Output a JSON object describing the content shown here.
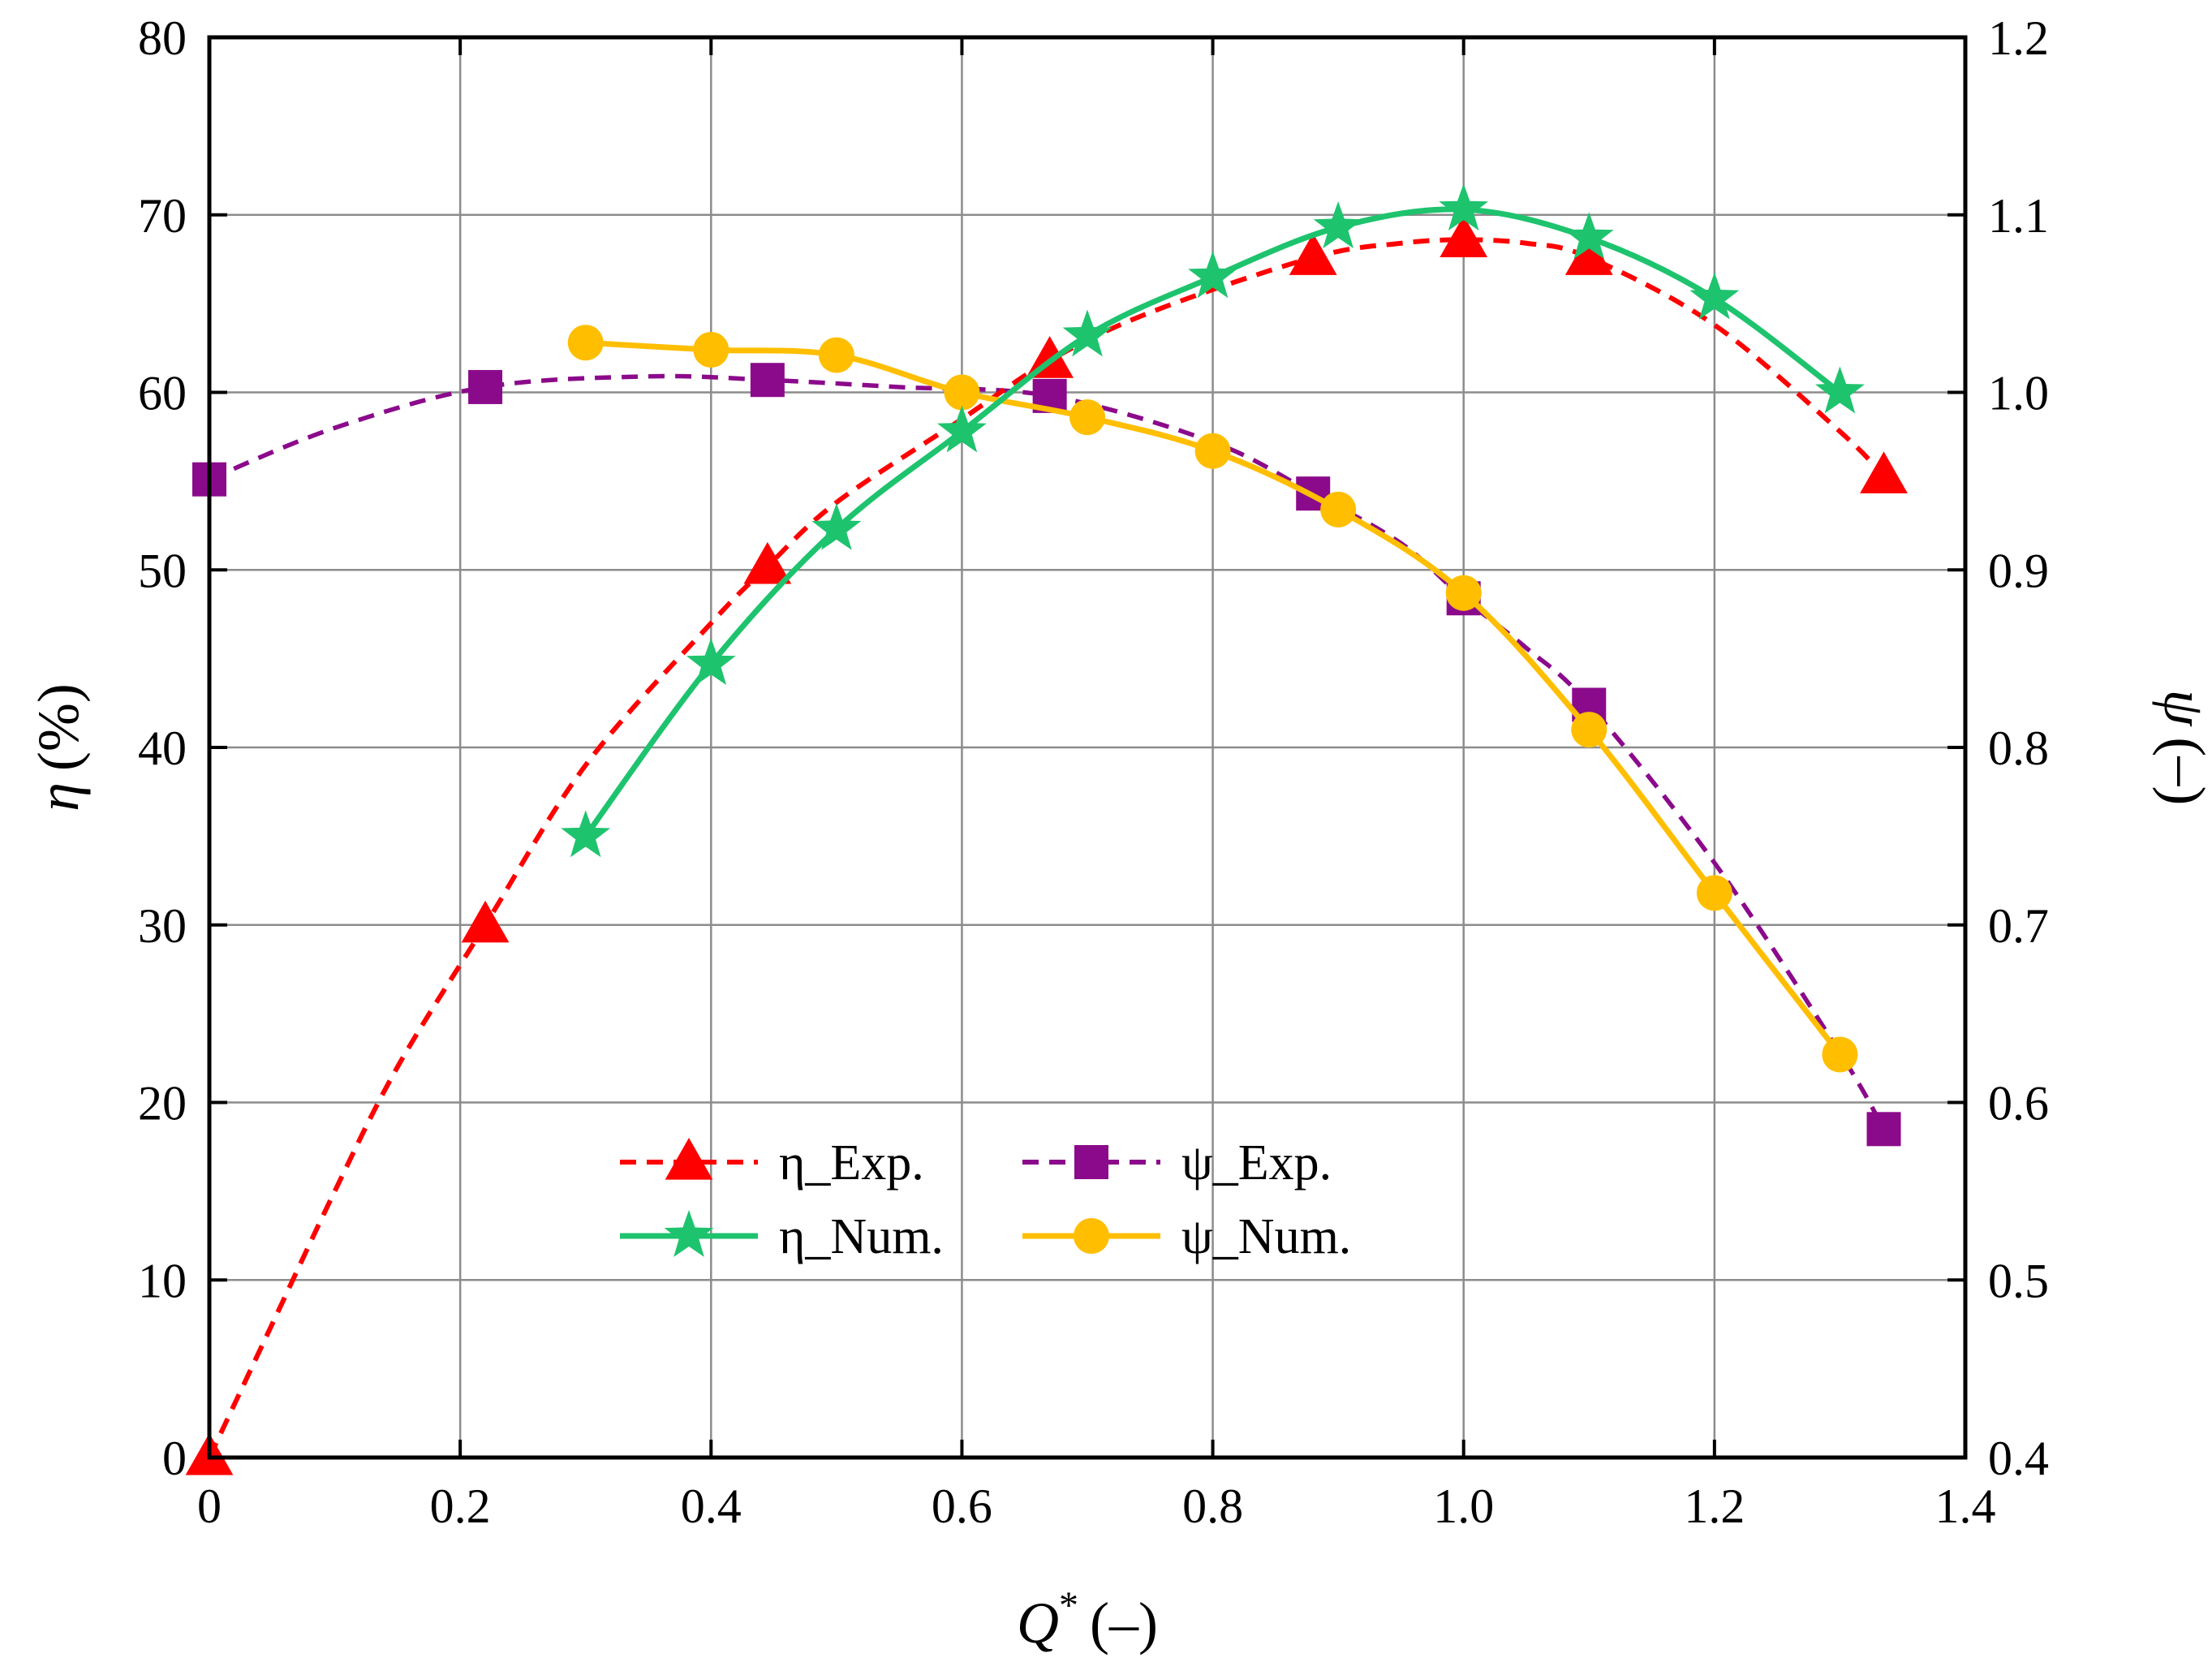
{
  "chart_data": {
    "type": "line",
    "x_axis": {
      "label_symbol": "Q",
      "label_superscript": "*",
      "label_unit": "(–)",
      "range": [
        0,
        1.4
      ],
      "ticks": [
        "0",
        "0.2",
        "0.4",
        "0.6",
        "0.8",
        "1.0",
        "1.2",
        "1.4"
      ],
      "tick_values": [
        0,
        0.2,
        0.4,
        0.6,
        0.8,
        1.0,
        1.2,
        1.4
      ]
    },
    "y_left": {
      "label_symbol": "η",
      "label_unit": "(%)",
      "range": [
        0,
        80
      ],
      "ticks": [
        "0",
        "10",
        "20",
        "30",
        "40",
        "50",
        "60",
        "70",
        "80"
      ],
      "tick_values": [
        0,
        10,
        20,
        30,
        40,
        50,
        60,
        70,
        80
      ]
    },
    "y_right": {
      "label_symbol": "ψ",
      "label_unit": "(–)",
      "range": [
        0.4,
        1.2
      ],
      "ticks": [
        "0.4",
        "0.5",
        "0.6",
        "0.7",
        "0.8",
        "0.9",
        "1.0",
        "1.1",
        "1.2"
      ],
      "tick_values": [
        0.4,
        0.5,
        0.6,
        0.7,
        0.8,
        0.9,
        1.0,
        1.1,
        1.2
      ]
    },
    "grid": true,
    "legend_position": "lower-center",
    "series": [
      {
        "name": "η_Exp.",
        "axis": "left",
        "color": "#ff0000",
        "marker": "triangle",
        "line": "dashed",
        "x": [
          0,
          0.22,
          0.445,
          0.67,
          0.88,
          1.0,
          1.1,
          1.335
        ],
        "y": [
          0,
          30,
          50.2,
          61.8,
          67.6,
          68.6,
          67.6,
          55.3
        ],
        "curve_x": [
          0,
          0.05,
          0.1,
          0.15,
          0.22,
          0.3,
          0.4,
          0.445,
          0.5,
          0.6,
          0.67,
          0.75,
          0.88,
          0.95,
          1.0,
          1.05,
          1.1,
          1.2,
          1.3,
          1.335
        ],
        "curve_y": [
          0,
          7.5,
          15,
          22,
          30,
          39,
          47,
          50.2,
          53.8,
          58.5,
          61.8,
          64.5,
          67.6,
          68.4,
          68.6,
          68.4,
          67.6,
          63.8,
          57.8,
          55.3
        ]
      },
      {
        "name": "η_Num.",
        "axis": "left",
        "color": "#1ec36e",
        "marker": "star",
        "line": "solid",
        "x": [
          0.3,
          0.4,
          0.5,
          0.6,
          0.7,
          0.8,
          0.9,
          1.0,
          1.1,
          1.2,
          1.3
        ],
        "y": [
          35,
          44.7,
          52.3,
          57.8,
          63.2,
          66.5,
          69.3,
          70.3,
          68.7,
          65.3,
          60
        ]
      },
      {
        "name": "ψ_Exp.",
        "axis": "right",
        "color": "#8b0a8b",
        "marker": "square",
        "line": "dashed",
        "x": [
          0,
          0.22,
          0.445,
          0.67,
          0.88,
          1.0,
          1.1,
          1.335
        ],
        "y": [
          0.951,
          1.003,
          1.007,
          0.998,
          0.943,
          0.884,
          0.824,
          0.585
        ],
        "curve_x": [
          0,
          0.1,
          0.22,
          0.35,
          0.445,
          0.55,
          0.67,
          0.8,
          0.88,
          0.95,
          1.0,
          1.05,
          1.1,
          1.2,
          1.3,
          1.335
        ],
        "curve_y": [
          0.951,
          0.98,
          1.003,
          1.009,
          1.007,
          1.003,
          0.998,
          0.972,
          0.943,
          0.915,
          0.884,
          0.856,
          0.824,
          0.735,
          0.628,
          0.585
        ]
      },
      {
        "name": "ψ_Num.",
        "axis": "right",
        "color": "#ffbe00",
        "marker": "circle",
        "line": "solid",
        "x": [
          0.3,
          0.4,
          0.5,
          0.6,
          0.7,
          0.8,
          0.9,
          1.0,
          1.1,
          1.2,
          1.3
        ],
        "y": [
          1.028,
          1.024,
          1.021,
          1.0,
          0.986,
          0.967,
          0.934,
          0.887,
          0.81,
          0.718,
          0.627
        ]
      }
    ]
  }
}
